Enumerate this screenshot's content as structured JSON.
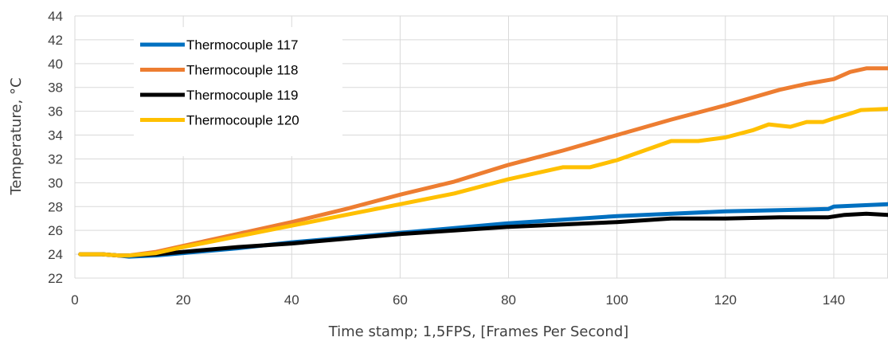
{
  "chart_data": {
    "type": "line",
    "title": "",
    "xlabel": "Time stamp; 1,5FPS, [Frames Per Second]",
    "ylabel": "Temperature, °C",
    "xlim": [
      0,
      150
    ],
    "ylim": [
      22,
      44
    ],
    "xticks": [
      0,
      20,
      40,
      60,
      80,
      100,
      120,
      140
    ],
    "yticks": [
      22,
      24,
      26,
      28,
      30,
      32,
      34,
      36,
      38,
      40,
      42,
      44
    ],
    "grid": true,
    "legend_position": "top-left",
    "series": [
      {
        "name": "Thermocouple 117",
        "color": "#0070C0",
        "points": [
          [
            1,
            24.0
          ],
          [
            5,
            24.0
          ],
          [
            8,
            23.9
          ],
          [
            10,
            23.8
          ],
          [
            15,
            23.9
          ],
          [
            20,
            24.1
          ],
          [
            30,
            24.5
          ],
          [
            40,
            25.0
          ],
          [
            50,
            25.4
          ],
          [
            60,
            25.8
          ],
          [
            70,
            26.2
          ],
          [
            80,
            26.6
          ],
          [
            90,
            26.9
          ],
          [
            100,
            27.2
          ],
          [
            110,
            27.4
          ],
          [
            120,
            27.6
          ],
          [
            130,
            27.7
          ],
          [
            139,
            27.8
          ],
          [
            140,
            28.0
          ],
          [
            145,
            28.1
          ],
          [
            150,
            28.2
          ]
        ]
      },
      {
        "name": "Thermocouple 118",
        "color": "#ED7D31",
        "points": [
          [
            1,
            24.0
          ],
          [
            5,
            24.0
          ],
          [
            8,
            23.9
          ],
          [
            10,
            23.9
          ],
          [
            15,
            24.2
          ],
          [
            20,
            24.7
          ],
          [
            30,
            25.7
          ],
          [
            40,
            26.7
          ],
          [
            50,
            27.8
          ],
          [
            60,
            29.0
          ],
          [
            70,
            30.1
          ],
          [
            80,
            31.5
          ],
          [
            90,
            32.7
          ],
          [
            100,
            34.0
          ],
          [
            110,
            35.3
          ],
          [
            120,
            36.5
          ],
          [
            130,
            37.8
          ],
          [
            135,
            38.3
          ],
          [
            140,
            38.7
          ],
          [
            143,
            39.3
          ],
          [
            146,
            39.6
          ],
          [
            150,
            39.6
          ]
        ]
      },
      {
        "name": "Thermocouple 119",
        "color": "#000000",
        "points": [
          [
            1,
            24.0
          ],
          [
            5,
            24.0
          ],
          [
            8,
            23.9
          ],
          [
            10,
            23.9
          ],
          [
            15,
            24.0
          ],
          [
            20,
            24.2
          ],
          [
            30,
            24.6
          ],
          [
            40,
            24.9
          ],
          [
            50,
            25.3
          ],
          [
            60,
            25.7
          ],
          [
            70,
            26.0
          ],
          [
            80,
            26.3
          ],
          [
            90,
            26.5
          ],
          [
            100,
            26.7
          ],
          [
            110,
            27.0
          ],
          [
            120,
            27.0
          ],
          [
            130,
            27.1
          ],
          [
            139,
            27.1
          ],
          [
            142,
            27.3
          ],
          [
            146,
            27.4
          ],
          [
            150,
            27.3
          ]
        ]
      },
      {
        "name": "Thermocouple 120",
        "color": "#FFC000",
        "points": [
          [
            1,
            24.0
          ],
          [
            5,
            24.0
          ],
          [
            8,
            23.9
          ],
          [
            10,
            23.9
          ],
          [
            15,
            24.1
          ],
          [
            20,
            24.6
          ],
          [
            30,
            25.5
          ],
          [
            40,
            26.4
          ],
          [
            50,
            27.3
          ],
          [
            60,
            28.2
          ],
          [
            70,
            29.1
          ],
          [
            80,
            30.3
          ],
          [
            90,
            31.3
          ],
          [
            95,
            31.3
          ],
          [
            100,
            31.9
          ],
          [
            105,
            32.7
          ],
          [
            110,
            33.5
          ],
          [
            115,
            33.5
          ],
          [
            120,
            33.8
          ],
          [
            125,
            34.4
          ],
          [
            128,
            34.9
          ],
          [
            132,
            34.7
          ],
          [
            135,
            35.1
          ],
          [
            138,
            35.1
          ],
          [
            140,
            35.4
          ],
          [
            143,
            35.8
          ],
          [
            145,
            36.1
          ],
          [
            150,
            36.2
          ]
        ]
      }
    ]
  }
}
